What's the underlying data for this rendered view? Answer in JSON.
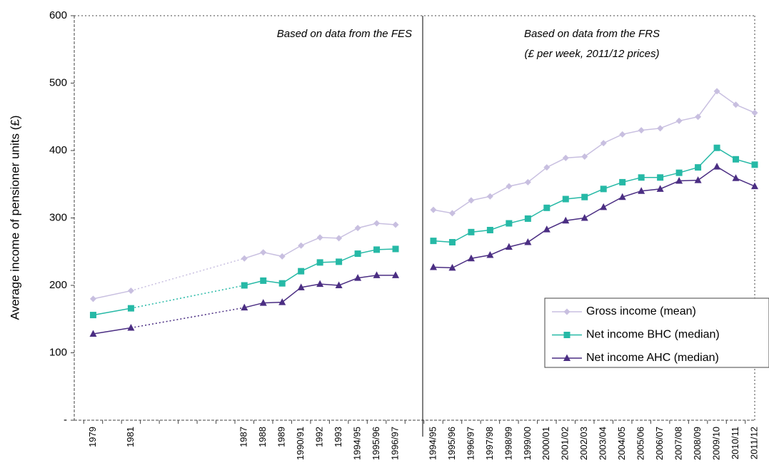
{
  "chart_data": [
    {
      "type": "line",
      "y_label": "Average income of pensioner units (£)",
      "annotation": [
        "Based on data from the FES"
      ],
      "ylim": [
        0,
        600
      ],
      "yticks": [
        {
          "value": 0,
          "label": "-"
        },
        100,
        200,
        300,
        400,
        500,
        600
      ],
      "categories": [
        null,
        "1979",
        null,
        "1981",
        null,
        null,
        null,
        null,
        null,
        "1987",
        "1988",
        "1989",
        "1990/91",
        "1992",
        "1993",
        "1994/95",
        "1995/96",
        "1996/97"
      ],
      "series": [
        {
          "color": "#c8bfe0",
          "marker": "diamond",
          "values": [
            null,
            180,
            null,
            192,
            null,
            null,
            null,
            null,
            null,
            240,
            249,
            243,
            259,
            271,
            270,
            285,
            292,
            290
          ]
        },
        {
          "color": "#26b9a6",
          "marker": "square",
          "values": [
            null,
            156,
            null,
            166,
            null,
            null,
            null,
            null,
            null,
            200,
            207,
            203,
            221,
            234,
            235,
            247,
            253,
            254
          ]
        },
        {
          "color": "#4b2e83",
          "marker": "triangle",
          "values": [
            null,
            128,
            null,
            137,
            null,
            null,
            null,
            null,
            null,
            167,
            174,
            175,
            197,
            202,
            200,
            211,
            215,
            215
          ]
        }
      ]
    },
    {
      "type": "line",
      "annotation": [
        "Based on data from the FRS",
        "(£ per week, 2011/12 prices)"
      ],
      "legend": "lower right",
      "categories": [
        "1994/95",
        "1995/96",
        "1996/97",
        "1997/98",
        "1998/99",
        "1999/00",
        "2000/01",
        "2001/02",
        "2002/03",
        "2003/04",
        "2004/05",
        "2005/06",
        "2006/07",
        "2007/08",
        "2008/09",
        "2009/10",
        "2010/11",
        "2011/12"
      ],
      "series": [
        {
          "name": "Gross income (mean)",
          "color": "#c8bfe0",
          "marker": "diamond",
          "values": [
            312,
            307,
            326,
            332,
            347,
            353,
            375,
            389,
            391,
            411,
            424,
            430,
            433,
            444,
            450,
            488,
            468,
            456
          ]
        },
        {
          "name": "Net income BHC (median)",
          "color": "#26b9a6",
          "marker": "square",
          "values": [
            266,
            264,
            279,
            282,
            292,
            299,
            315,
            328,
            331,
            343,
            353,
            360,
            360,
            367,
            375,
            404,
            387,
            379
          ]
        },
        {
          "name": "Net income AHC (median)",
          "color": "#4b2e83",
          "marker": "triangle",
          "values": [
            227,
            226,
            240,
            245,
            257,
            264,
            283,
            296,
            300,
            316,
            331,
            340,
            343,
            355,
            356,
            376,
            359,
            347
          ]
        }
      ]
    }
  ]
}
